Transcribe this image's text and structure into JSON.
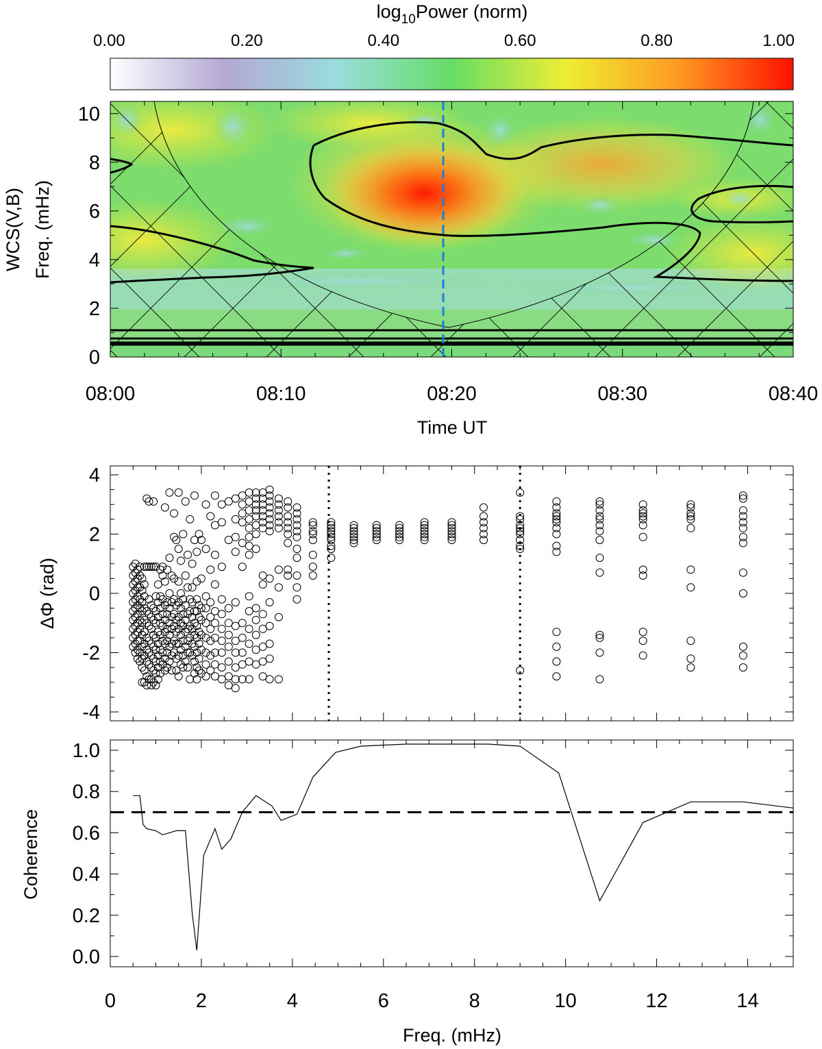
{
  "chart_data": [
    {
      "type": "heatmap",
      "title": "",
      "colorbar": {
        "label": "log10Power (norm)",
        "label_base": "log",
        "label_sub": "10",
        "label_rest": "Power (norm)",
        "ticks": [
          "0.00",
          "0.20",
          "0.40",
          "0.60",
          "0.80",
          "1.00"
        ],
        "range": [
          0,
          1
        ],
        "colors": [
          "#ffffff",
          "#b3a8d4",
          "#99dddd",
          "#66dd66",
          "#eeee33",
          "#ff9922",
          "#ff1100"
        ]
      },
      "ylabel_line1": "WCS(V,B)",
      "ylabel_line2": "Freq. (mHz)",
      "xlabel": "Time UT",
      "xticks": [
        "08:00",
        "08:10",
        "08:20",
        "08:30",
        "08:40"
      ],
      "xlim_minutes": [
        0,
        40
      ],
      "yticks": [
        "0",
        "2",
        "4",
        "6",
        "8",
        "10"
      ],
      "ylim": [
        0,
        10.5
      ],
      "peak": {
        "time_min": 19,
        "freq_mHz": 6.5
      },
      "marker_time_min": 19.5,
      "marker_color": "#1a7fd8",
      "marker_style": "dashed",
      "cone_of_influence": "hatched",
      "contour_level": "significance"
    },
    {
      "type": "scatter",
      "ylabel": "ΔΦ (rad)",
      "ylim": [
        -4.3,
        4.3
      ],
      "yticks": [
        "-4",
        "-2",
        "0",
        "2",
        "4"
      ],
      "xlim": [
        0,
        15
      ],
      "vlines_mHz": [
        4.8,
        9.0
      ],
      "vline_style": "dotted",
      "marker": "open-circle",
      "x": [
        0.5,
        0.55,
        0.6,
        0.65,
        0.7,
        0.75,
        0.8,
        0.85,
        0.9,
        0.95,
        1.0,
        1.05,
        1.1,
        1.15,
        1.2,
        1.25,
        1.3,
        1.35,
        1.4,
        1.45,
        1.5,
        1.55,
        1.6,
        1.65,
        1.7,
        1.75,
        1.8,
        1.85,
        1.9,
        1.95,
        2.0,
        2.1,
        2.2,
        2.3,
        2.45,
        2.6,
        2.75,
        2.9,
        3.05,
        3.2,
        3.35,
        3.5,
        3.7,
        3.9,
        4.1,
        4.45,
        4.85,
        5.35,
        5.85,
        6.35,
        6.9,
        7.5,
        8.2,
        9.0,
        9.8,
        10.75,
        11.7,
        12.75,
        13.9
      ],
      "groups_y": [
        [
          0.9,
          0.6,
          0.3,
          0.0,
          -0.3,
          -0.6,
          -0.9,
          -1.2,
          -1.5,
          -1.8
        ],
        [
          1.0,
          0.7,
          0.4,
          0.1,
          -0.2,
          -0.5,
          -0.8,
          -1.1,
          -1.4,
          -1.7,
          -2.0
        ],
        [
          0.8,
          0.5,
          0.2,
          -0.1,
          -0.4,
          -0.7,
          -1.0,
          -1.3,
          -1.6,
          -1.9,
          -2.2
        ],
        [
          0.9,
          0.6,
          0.2,
          -0.2,
          -0.5,
          -0.9,
          -1.2,
          -1.6,
          -2.0,
          -2.3
        ],
        [
          0.5,
          0.1,
          -0.3,
          -0.6,
          -1.0,
          -1.4,
          -1.8,
          -2.2,
          -2.5,
          -3.0
        ],
        [
          0.9,
          0.3,
          -0.1,
          -0.5,
          -0.9,
          -1.3,
          -1.7,
          -2.1,
          -2.6,
          -3.0
        ],
        [
          3.2,
          0.9,
          -0.6,
          -1.0,
          -1.5,
          -1.9,
          -2.3,
          -2.8,
          -3.1
        ],
        [
          3.1,
          0.9,
          -0.2,
          -0.7,
          -1.1,
          -1.6,
          -2.0,
          -2.4,
          -2.9
        ],
        [
          0.9,
          -0.4,
          -0.8,
          -1.2,
          -1.7,
          -2.1,
          -2.5,
          -2.9,
          -3.1
        ],
        [
          3.1,
          0.9,
          -0.5,
          -0.9,
          -1.4,
          -1.8,
          -2.2,
          -2.6,
          -3.0
        ],
        [
          0.9,
          -0.1,
          -0.6,
          -1.0,
          -1.5,
          -1.9,
          -2.3,
          -2.7,
          -3.1
        ],
        [
          0.3,
          -0.3,
          -0.8,
          -1.3,
          -1.7,
          -2.1,
          -2.5,
          -2.9
        ],
        [
          0.8,
          -0.1,
          -0.5,
          -1.0,
          -1.4,
          -1.9,
          -2.3,
          -2.7
        ],
        [
          0.9,
          0.6,
          -0.2,
          -0.7,
          -1.1,
          -1.6,
          -2.0,
          -2.4
        ],
        [
          2.9,
          0.4,
          -0.4,
          -0.9,
          -1.3,
          -1.7,
          -2.2,
          -2.6
        ],
        [
          0.8,
          -0.3,
          -0.7,
          -1.2,
          -1.6,
          -2.0,
          -2.5
        ],
        [
          3.4,
          1.2,
          0.0,
          -0.5,
          -1.0,
          -1.4,
          -1.8,
          -2.3
        ],
        [
          0.6,
          -0.3,
          -0.8,
          -1.2,
          -1.7,
          -2.1,
          -2.6
        ],
        [
          2.7,
          1.9,
          0.5,
          -0.2,
          -0.7,
          -1.1,
          -1.6,
          -2.0
        ],
        [
          1.8,
          -0.4,
          -0.9,
          -1.3,
          -1.7,
          -2.2,
          -2.6
        ],
        [
          3.4,
          1.5,
          0.4,
          -0.3,
          -0.8,
          -1.2,
          -1.7,
          -2.1,
          -2.8
        ],
        [
          1.1,
          0.0,
          -0.5,
          -1.0,
          -1.4,
          -1.9,
          -2.4
        ],
        [
          2.0,
          -0.2,
          -0.7,
          -1.1,
          -1.6,
          -2.1,
          -2.5
        ],
        [
          3.1,
          0.6,
          -0.4,
          -0.9,
          -1.3,
          -1.8,
          -2.3
        ],
        [
          1.3,
          0.2,
          -0.7,
          -1.2,
          -1.6,
          -2.0,
          -2.5
        ],
        [
          2.5,
          -0.2,
          -0.6,
          -1.1,
          -1.5,
          -2.0,
          -2.9
        ],
        [
          1.0,
          0.2,
          -0.3,
          -0.8,
          -1.2,
          -1.7,
          -2.1
        ],
        [
          3.3,
          1.8,
          -0.6,
          -1.0,
          -1.4,
          -1.8,
          -2.3,
          -2.7
        ],
        [
          1.4,
          0.4,
          -0.2,
          -0.6,
          -1.1,
          -1.5,
          -2.0,
          -2.5,
          -2.9
        ],
        [
          2.0,
          -0.4,
          -0.8,
          -1.3,
          -1.7,
          -2.2,
          -2.6
        ],
        [
          1.8,
          0.5,
          -0.5,
          -0.9,
          -1.4,
          -1.9,
          -2.7
        ],
        [
          3.0,
          1.5,
          -0.1,
          -0.5,
          -1.0,
          -1.5,
          -2.0,
          -2.4,
          -2.8
        ],
        [
          2.6,
          0.8,
          -0.3,
          -0.8,
          -1.2,
          -1.6,
          -2.1,
          -2.6
        ],
        [
          3.3,
          2.3,
          1.3,
          0.3,
          -0.6,
          -1.0,
          -1.5,
          -2.0,
          -2.4,
          -2.8
        ],
        [
          3.0,
          2.4,
          0.9,
          -0.2,
          -0.7,
          -1.2,
          -1.6,
          -2.0,
          -2.5,
          -2.9
        ],
        [
          3.1,
          1.8,
          -0.5,
          -1.0,
          -1.4,
          -1.8,
          -2.3,
          -2.8,
          -3.1
        ],
        [
          3.2,
          2.5,
          1.9,
          1.4,
          -0.3,
          -1.1,
          -1.6,
          -2.0,
          -2.5,
          -2.9,
          -3.2
        ],
        [
          3.3,
          3.0,
          2.7,
          2.4,
          1.7,
          0.9,
          -1.0,
          -1.5,
          -2.0,
          -2.4,
          -2.9
        ],
        [
          3.4,
          3.1,
          2.8,
          2.5,
          2.2,
          1.9,
          1.6,
          1.3,
          -0.1,
          -0.6,
          -1.2,
          -1.7,
          -2.3,
          -2.9
        ],
        [
          3.4,
          3.2,
          3.0,
          2.8,
          2.6,
          2.3,
          2.0,
          1.5,
          -0.5,
          -0.9,
          -1.4,
          -1.9,
          -2.4
        ],
        [
          3.4,
          3.2,
          3.0,
          2.8,
          2.6,
          2.4,
          2.2,
          0.6,
          0.3,
          -0.7,
          -1.2,
          -1.8,
          -2.3,
          -2.8
        ],
        [
          3.5,
          3.3,
          3.1,
          2.9,
          2.7,
          2.5,
          2.3,
          2.1,
          0.5,
          -0.3,
          -1.1,
          -1.7,
          -2.2,
          -2.9
        ],
        [
          3.2,
          3.0,
          2.8,
          2.6,
          2.4,
          2.2,
          0.8,
          0.2,
          -0.8,
          -2.9
        ],
        [
          3.1,
          2.9,
          2.6,
          2.4,
          2.2,
          2.0,
          1.7,
          0.8,
          0.6
        ],
        [
          2.9,
          2.7,
          2.5,
          2.3,
          2.1,
          1.9,
          1.5,
          1.2,
          0.6,
          0.2,
          -0.2
        ],
        [
          2.4,
          2.3,
          2.1,
          2.0,
          1.8,
          1.3,
          0.9,
          0.6
        ],
        [
          2.4,
          2.3,
          2.2,
          2.1,
          2.0,
          1.9,
          1.8,
          1.6,
          1.5,
          1.2
        ],
        [
          2.3,
          2.2,
          2.1,
          2.0,
          1.9,
          1.8,
          1.7
        ],
        [
          2.3,
          2.2,
          2.1,
          2.0,
          1.9,
          1.8
        ],
        [
          2.3,
          2.2,
          2.1,
          2.0,
          1.9,
          1.8
        ],
        [
          2.4,
          2.3,
          2.2,
          2.1,
          2.0,
          1.9,
          1.8
        ],
        [
          2.4,
          2.3,
          2.2,
          2.1,
          2.0,
          1.9,
          1.8
        ],
        [
          2.9,
          2.6,
          2.4,
          2.2,
          2.0,
          1.8
        ],
        [
          3.4,
          2.6,
          2.5,
          2.3,
          2.2,
          2.1,
          2.0,
          1.8,
          1.6,
          1.5,
          -2.6
        ],
        [
          3.1,
          2.9,
          2.7,
          2.6,
          2.5,
          2.4,
          2.2,
          2.0,
          1.6,
          1.4,
          -1.3,
          -1.8,
          -2.3,
          -2.8
        ],
        [
          3.1,
          3.0,
          2.8,
          2.6,
          2.5,
          2.3,
          2.1,
          1.8,
          1.2,
          0.7,
          -1.4,
          -1.5,
          -2.0,
          -2.9
        ],
        [
          3.0,
          2.8,
          2.7,
          2.6,
          2.5,
          2.3,
          1.9,
          0.8,
          0.6,
          -1.3,
          -1.6,
          -2.1
        ],
        [
          3.0,
          2.9,
          2.7,
          2.6,
          2.5,
          2.2,
          0.8,
          0.2,
          -1.6,
          -2.2,
          -2.5
        ],
        [
          3.3,
          3.2,
          2.8,
          2.6,
          2.4,
          2.2,
          1.9,
          1.7,
          0.7,
          0.0,
          -1.8,
          -2.1,
          -2.5
        ]
      ]
    },
    {
      "type": "line",
      "xlabel": "Freq. (mHz)",
      "ylabel": "Coherence",
      "xlim": [
        0,
        15
      ],
      "ylim": [
        -0.05,
        1.05
      ],
      "xticks": [
        "0",
        "2",
        "4",
        "6",
        "8",
        "10",
        "12",
        "14"
      ],
      "yticks": [
        "0.0",
        "0.2",
        "0.4",
        "0.6",
        "0.8",
        "1.0"
      ],
      "threshold": 0.7,
      "threshold_style": "dashed",
      "x": [
        0.5,
        0.65,
        0.72,
        0.8,
        1.0,
        1.15,
        1.3,
        1.45,
        1.55,
        1.65,
        1.8,
        1.9,
        2.05,
        2.3,
        2.45,
        2.65,
        2.9,
        3.2,
        3.55,
        3.75,
        4.1,
        4.45,
        4.95,
        5.5,
        6.5,
        7.5,
        8.3,
        9.0,
        9.85,
        10.75,
        11.7,
        12.75,
        13.9,
        15.0
      ],
      "y": [
        0.78,
        0.78,
        0.64,
        0.62,
        0.61,
        0.59,
        0.6,
        0.61,
        0.61,
        0.61,
        0.21,
        0.03,
        0.49,
        0.62,
        0.52,
        0.57,
        0.7,
        0.78,
        0.73,
        0.66,
        0.69,
        0.87,
        0.99,
        1.02,
        1.03,
        1.03,
        1.03,
        1.02,
        0.89,
        0.27,
        0.65,
        0.75,
        0.75,
        0.72
      ]
    }
  ]
}
